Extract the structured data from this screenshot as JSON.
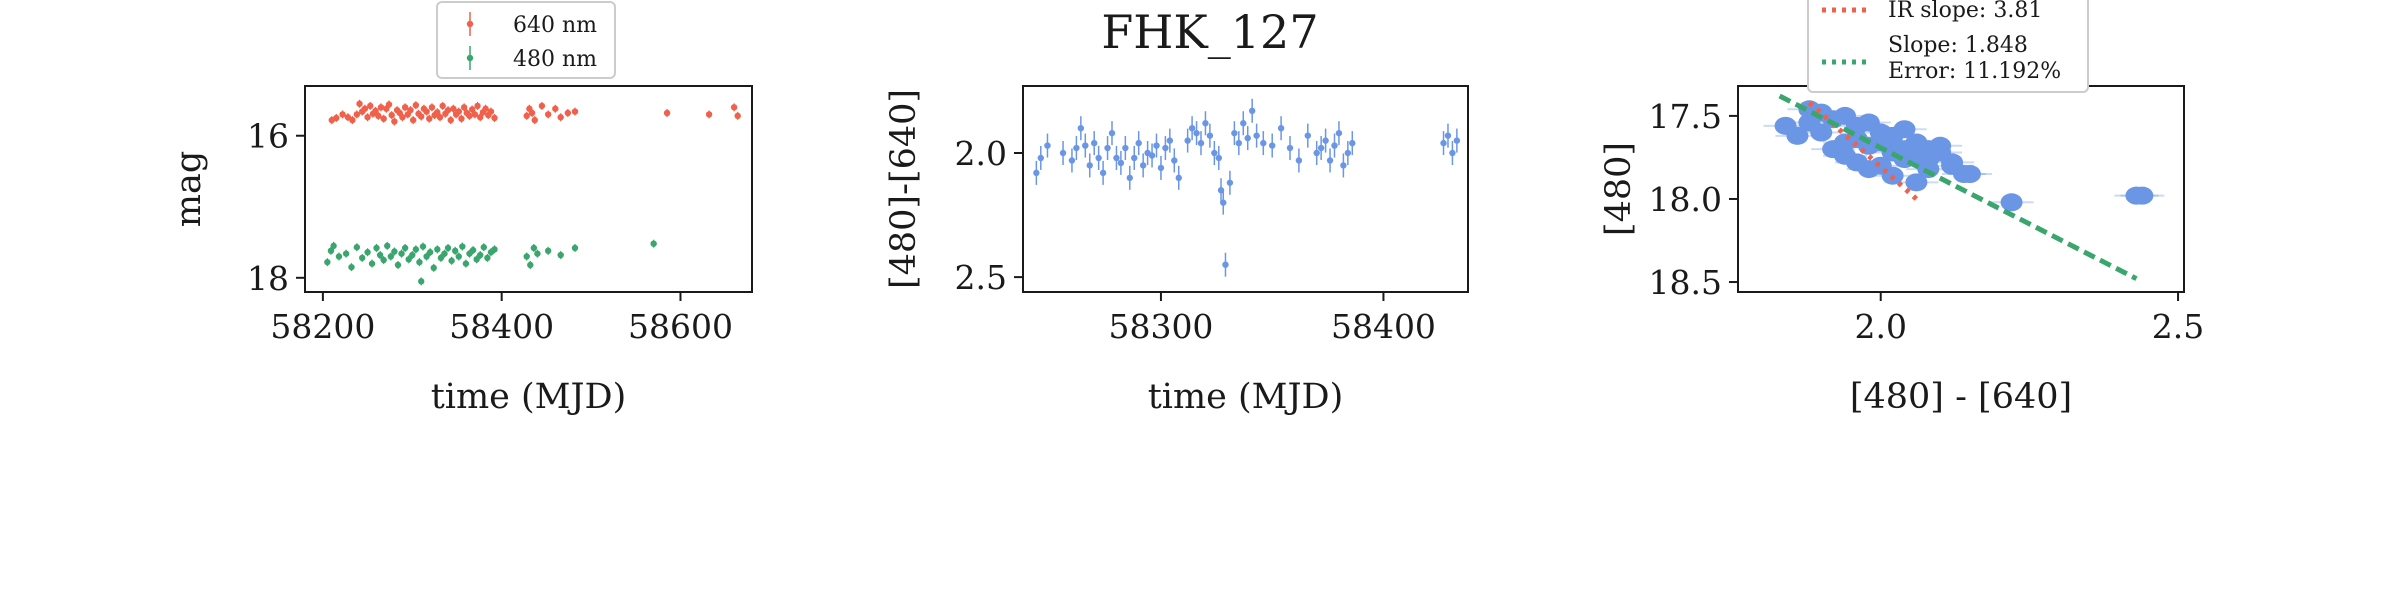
{
  "suptitle": "FHK_127",
  "chart_data": [
    {
      "type": "scatter",
      "id": "lightcurve",
      "title": "",
      "xlabel": "time (MJD)",
      "ylabel": "mag",
      "xlim": [
        58180,
        58680
      ],
      "ylim": [
        18.2,
        15.3
      ],
      "y_inverted": true,
      "xticks": [
        58200,
        58400,
        58600
      ],
      "yticks": [
        16,
        18
      ],
      "legend": {
        "placement": "top-center, above axes"
      },
      "series": [
        {
          "name": "640 nm",
          "color": "#f0604a",
          "x": [
            58210,
            58215,
            58222,
            58228,
            58233,
            58238,
            58241,
            58244,
            58247,
            58250,
            58253,
            58256,
            58259,
            58262,
            58265,
            58268,
            58271,
            58274,
            58277,
            58280,
            58283,
            58286,
            58289,
            58292,
            58295,
            58298,
            58301,
            58304,
            58307,
            58310,
            58313,
            58316,
            58319,
            58322,
            58325,
            58328,
            58331,
            58334,
            58337,
            58340,
            58343,
            58346,
            58349,
            58352,
            58355,
            58358,
            58361,
            58364,
            58367,
            58370,
            58373,
            58376,
            58379,
            58382,
            58385,
            58388,
            58392,
            58428,
            58431,
            58434,
            58437,
            58445,
            58452,
            58460,
            58466,
            58474,
            58482,
            58585,
            58632,
            58660,
            58664
          ],
          "y": [
            15.78,
            15.75,
            15.7,
            15.74,
            15.78,
            15.7,
            15.55,
            15.66,
            15.62,
            15.74,
            15.58,
            15.69,
            15.65,
            15.72,
            15.6,
            15.76,
            15.62,
            15.56,
            15.71,
            15.8,
            15.64,
            15.68,
            15.74,
            15.6,
            15.7,
            15.64,
            15.78,
            15.57,
            15.69,
            15.73,
            15.62,
            15.66,
            15.76,
            15.6,
            15.71,
            15.67,
            15.74,
            15.58,
            15.69,
            15.64,
            15.78,
            15.62,
            15.7,
            15.66,
            15.76,
            15.6,
            15.68,
            15.72,
            15.63,
            15.7,
            15.58,
            15.74,
            15.67,
            15.62,
            15.71,
            15.66,
            15.75,
            15.72,
            15.62,
            15.68,
            15.78,
            15.58,
            15.7,
            15.62,
            15.74,
            15.68,
            15.66,
            15.68,
            15.7,
            15.6,
            15.72
          ]
        },
        {
          "name": "480 nm",
          "color": "#3aa66e",
          "x": [
            58205,
            58209,
            58212,
            58218,
            58226,
            58232,
            58238,
            58244,
            58250,
            58255,
            58260,
            58264,
            58268,
            58272,
            58276,
            58280,
            58284,
            58288,
            58292,
            58296,
            58300,
            58304,
            58308,
            58312,
            58316,
            58320,
            58324,
            58328,
            58332,
            58336,
            58340,
            58344,
            58348,
            58352,
            58356,
            58360,
            58364,
            58368,
            58372,
            58376,
            58380,
            58384,
            58388,
            58392,
            58428,
            58432,
            58436,
            58440,
            58452,
            58466,
            58482,
            58570
          ],
          "y": [
            17.78,
            17.62,
            17.55,
            17.7,
            17.66,
            17.85,
            17.57,
            17.72,
            17.64,
            17.8,
            17.58,
            17.68,
            17.75,
            17.55,
            17.7,
            17.63,
            17.82,
            17.66,
            17.58,
            17.74,
            17.68,
            17.6,
            17.78,
            17.56,
            17.7,
            17.64,
            17.86,
            17.6,
            17.72,
            17.66,
            17.58,
            17.76,
            17.62,
            17.7,
            17.56,
            17.8,
            17.66,
            17.61,
            17.74,
            17.68,
            17.57,
            17.72,
            17.64,
            17.6,
            17.7,
            17.82,
            17.58,
            17.66,
            17.62,
            17.68,
            17.58,
            17.52
          ]
        },
        {
          "name": "",
          "color": "#3aa66e",
          "x": [
            58310
          ],
          "y": [
            18.05
          ]
        }
      ]
    },
    {
      "type": "scatter",
      "id": "colorcurve",
      "title": "",
      "xlabel": "time (MJD)",
      "ylabel": "[480]-[640]",
      "xlim": [
        58238,
        58438
      ],
      "ylim": [
        2.56,
        1.73
      ],
      "y_inverted": true,
      "xticks": [
        58300,
        58400
      ],
      "yticks": [
        2.0,
        2.5
      ],
      "ytick_labels": [
        "2.0",
        "2.5"
      ],
      "series": [
        {
          "name": "",
          "color": "#6b96e6",
          "x": [
            58244,
            58246,
            58249,
            58256,
            58260,
            58262,
            58264,
            58266,
            58268,
            58270,
            58272,
            58274,
            58276,
            58278,
            58280,
            58282,
            58284,
            58286,
            58288,
            58290,
            58292,
            58294,
            58296,
            58298,
            58300,
            58302,
            58304,
            58306,
            58308,
            58312,
            58314,
            58316,
            58318,
            58320,
            58322,
            58324,
            58326,
            58327,
            58328,
            58329,
            58331,
            58333,
            58335,
            58337,
            58339,
            58341,
            58343,
            58346,
            58350,
            58354,
            58358,
            58362,
            58366,
            58370,
            58372,
            58374,
            58376,
            58378,
            58380,
            58382,
            58384,
            58386,
            58427,
            58429,
            58431,
            58433
          ],
          "y": [
            2.08,
            2.02,
            1.97,
            2.0,
            2.03,
            1.98,
            1.9,
            1.97,
            2.05,
            1.96,
            2.02,
            2.08,
            1.98,
            1.92,
            2.02,
            2.04,
            1.98,
            2.1,
            2.02,
            1.96,
            2.05,
            2.0,
            2.01,
            1.97,
            2.06,
            1.98,
            1.95,
            2.03,
            2.1,
            1.95,
            1.9,
            1.92,
            1.96,
            1.88,
            1.93,
            2.0,
            2.02,
            2.15,
            2.2,
            2.45,
            2.12,
            1.92,
            1.96,
            1.88,
            1.94,
            1.83,
            1.93,
            1.96,
            1.97,
            1.9,
            1.98,
            2.03,
            1.93,
            2.0,
            1.98,
            1.95,
            2.03,
            1.97,
            1.92,
            2.05,
            2.0,
            1.96,
            1.96,
            1.93,
            2.0,
            1.95
          ]
        }
      ]
    },
    {
      "type": "scatter",
      "id": "cmd",
      "title": "",
      "xlabel": "[480] - [640]",
      "ylabel": "[480]",
      "xlim": [
        1.76,
        2.51
      ],
      "ylim": [
        18.56,
        17.32
      ],
      "y_inverted": true,
      "xticks": [
        2.0,
        2.5
      ],
      "xtick_labels": [
        "2.0",
        "2.5"
      ],
      "yticks": [
        17.5,
        18.0,
        18.5
      ],
      "ytick_labels": [
        "17.5",
        "18.0",
        "18.5"
      ],
      "legend": {
        "placement": "top-center, above axes"
      },
      "lines": [
        {
          "label": "IR slope: 3.81",
          "color": "#f0604a",
          "dash": "dotted",
          "x": [
            1.88,
            2.06
          ],
          "y": [
            17.42,
            18.0
          ]
        },
        {
          "label": "Slope: 1.848\nError: 11.192%",
          "color": "#3aa66e",
          "dash": "dashed",
          "x": [
            1.83,
            2.43
          ],
          "y": [
            17.38,
            18.48
          ]
        }
      ],
      "series": [
        {
          "name": "",
          "color": "#6b96e6",
          "x": [
            1.84,
            1.88,
            1.9,
            1.92,
            1.94,
            1.96,
            1.98,
            2.0,
            2.02,
            2.04,
            2.06,
            2.08,
            2.1,
            2.12,
            2.14,
            1.86,
            1.9,
            1.94,
            1.98,
            2.02,
            2.06,
            1.92,
            1.96,
            2.0,
            2.04,
            2.08,
            1.88,
            1.96,
            2.0,
            2.04,
            2.08,
            2.12,
            2.15,
            1.94,
            1.98,
            2.02,
            2.06,
            2.1,
            2.22,
            2.43,
            2.44
          ],
          "y": [
            17.56,
            17.46,
            17.48,
            17.52,
            17.5,
            17.56,
            17.54,
            17.6,
            17.62,
            17.58,
            17.66,
            17.7,
            17.68,
            17.78,
            17.85,
            17.62,
            17.6,
            17.66,
            17.68,
            17.72,
            17.74,
            17.7,
            17.78,
            17.8,
            17.76,
            17.82,
            17.54,
            17.64,
            17.66,
            17.7,
            17.76,
            17.8,
            17.85,
            17.74,
            17.82,
            17.86,
            17.9,
            17.72,
            18.02,
            17.98,
            17.98
          ]
        }
      ]
    }
  ]
}
